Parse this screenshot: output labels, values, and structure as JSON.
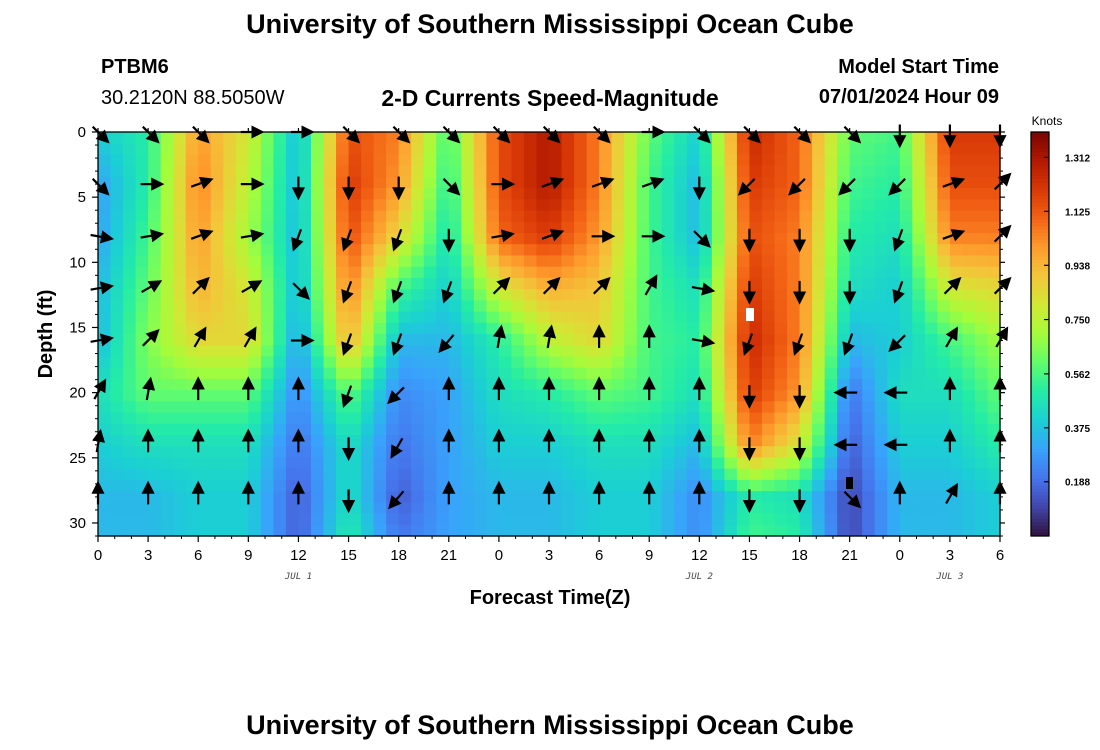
{
  "header": {
    "title": "University of Southern Mississippi Ocean Cube",
    "station_id": "PTBM6",
    "station_coords": "30.2120N  88.5050W",
    "chart_title": "2-D Currents Speed-Magnitude",
    "model_start_label": "Model Start Time",
    "model_start_value": "07/01/2024 Hour 09"
  },
  "footer": {
    "title": "University of Southern Mississippi Ocean Cube"
  },
  "colors": {
    "scale": [
      "#30123b",
      "#4145ab",
      "#4675ed",
      "#39a2fc",
      "#1bcfd4",
      "#24eca6",
      "#61fc6c",
      "#a4fc3b",
      "#d1e834",
      "#f3c63a",
      "#fe9b2d",
      "#f36315",
      "#d93806",
      "#b11901",
      "#7a0402"
    ],
    "axis": "#000000"
  },
  "chart_data": {
    "type": "heatmap",
    "subtype": "time-depth section with current direction vectors",
    "xlabel": "Forecast Time(Z)",
    "ylabel": "Depth (ft)",
    "x_range": [
      0,
      54
    ],
    "y_range": [
      0,
      31
    ],
    "y_inverted": true,
    "x_ticks": [
      0,
      3,
      6,
      9,
      12,
      15,
      18,
      21,
      24,
      27,
      30,
      33,
      36,
      39,
      42,
      45,
      48,
      51,
      54
    ],
    "x_tick_labels": [
      "0",
      "3",
      "6",
      "9",
      "12",
      "15",
      "18",
      "21",
      "0",
      "3",
      "6",
      "9",
      "12",
      "15",
      "18",
      "21",
      "0",
      "3",
      "6"
    ],
    "y_ticks": [
      0,
      5,
      10,
      15,
      20,
      25,
      30
    ],
    "y_tick_labels": [
      "0",
      "5",
      "10",
      "15",
      "20",
      "25",
      "30"
    ],
    "date_labels": [
      {
        "x": 12,
        "text": "JUL 1"
      },
      {
        "x": 36,
        "text": "JUL 2"
      },
      {
        "x": 51,
        "text": "JUL 3"
      }
    ],
    "colorbar": {
      "title": "Knots",
      "min": 0,
      "max": 1.4,
      "tick_values": [
        1.312,
        1.125,
        0.938,
        0.75,
        0.562,
        0.375,
        0.188
      ],
      "tick_labels": [
        "1.312",
        "1.125",
        "0.938",
        "0.750",
        "0.562",
        "0.375",
        "0.188"
      ]
    },
    "vector_times": [
      0,
      3,
      6,
      9,
      12,
      15,
      18,
      21,
      24,
      27,
      30,
      33,
      36,
      39,
      42,
      45,
      48,
      51,
      54
    ],
    "vector_depths": [
      0,
      4,
      8,
      12,
      16,
      20,
      24,
      28
    ],
    "vector_directions_deg": [
      [
        135,
        135,
        135,
        90,
        90,
        135,
        135,
        135,
        135,
        135,
        135,
        90,
        135,
        135,
        135,
        135,
        180,
        180,
        180
      ],
      [
        135,
        90,
        70,
        90,
        180,
        180,
        180,
        135,
        90,
        70,
        70,
        70,
        180,
        225,
        225,
        225,
        225,
        70,
        45
      ],
      [
        100,
        80,
        70,
        80,
        200,
        200,
        200,
        180,
        80,
        70,
        90,
        90,
        135,
        180,
        180,
        180,
        200,
        70,
        45
      ],
      [
        80,
        60,
        45,
        60,
        135,
        200,
        200,
        200,
        45,
        45,
        45,
        30,
        100,
        180,
        180,
        180,
        200,
        45,
        45
      ],
      [
        80,
        45,
        30,
        30,
        90,
        200,
        200,
        220,
        10,
        10,
        0,
        0,
        100,
        200,
        200,
        200,
        225,
        30,
        30
      ],
      [
        30,
        10,
        0,
        0,
        0,
        200,
        225,
        0,
        0,
        0,
        0,
        0,
        0,
        180,
        180,
        270,
        270,
        0,
        0
      ],
      [
        10,
        0,
        0,
        0,
        0,
        180,
        210,
        0,
        0,
        0,
        0,
        0,
        0,
        180,
        180,
        270,
        270,
        0,
        0
      ],
      [
        0,
        0,
        0,
        0,
        0,
        180,
        220,
        0,
        0,
        0,
        0,
        0,
        0,
        180,
        180,
        135,
        0,
        30,
        0
      ]
    ],
    "speed_field_knots": {
      "depths": [
        0,
        4,
        8,
        12,
        16,
        20,
        24,
        28,
        31
      ],
      "times": [
        0,
        3,
        6,
        9,
        12,
        15,
        18,
        21,
        24,
        27,
        30,
        33,
        36,
        39,
        42,
        45,
        48,
        51,
        54
      ],
      "values": [
        [
          0.4,
          0.5,
          1.0,
          0.8,
          0.35,
          1.15,
          1.05,
          0.55,
          1.15,
          1.3,
          1.05,
          0.6,
          0.4,
          1.25,
          1.1,
          0.6,
          0.55,
          1.2,
          1.2
        ],
        [
          0.3,
          0.5,
          1.05,
          0.75,
          0.35,
          1.2,
          1.0,
          0.5,
          1.15,
          1.3,
          1.05,
          0.55,
          0.35,
          1.2,
          1.1,
          0.55,
          0.5,
          1.15,
          1.15
        ],
        [
          0.3,
          0.55,
          1.0,
          0.7,
          0.35,
          1.15,
          0.85,
          0.45,
          1.1,
          1.2,
          1.0,
          0.55,
          0.35,
          1.15,
          1.05,
          0.5,
          0.45,
          1.05,
          1.05
        ],
        [
          0.35,
          0.6,
          0.95,
          0.8,
          0.35,
          1.05,
          0.55,
          0.4,
          0.8,
          0.95,
          0.9,
          0.55,
          0.45,
          1.2,
          1.05,
          0.45,
          0.4,
          0.8,
          0.85
        ],
        [
          0.35,
          0.65,
          0.85,
          0.85,
          0.3,
          0.95,
          0.35,
          0.35,
          0.5,
          0.75,
          0.85,
          0.55,
          0.5,
          1.25,
          1.05,
          0.35,
          0.4,
          0.55,
          0.7
        ],
        [
          0.45,
          0.6,
          0.6,
          0.6,
          0.25,
          0.6,
          0.25,
          0.3,
          0.45,
          0.5,
          0.6,
          0.55,
          0.45,
          1.2,
          1.0,
          0.2,
          0.45,
          0.45,
          0.6
        ],
        [
          0.4,
          0.45,
          0.45,
          0.45,
          0.2,
          0.45,
          0.2,
          0.3,
          0.4,
          0.4,
          0.45,
          0.45,
          0.35,
          1.05,
          0.8,
          0.15,
          0.4,
          0.4,
          0.5
        ],
        [
          0.35,
          0.35,
          0.4,
          0.4,
          0.15,
          0.45,
          0.15,
          0.3,
          0.35,
          0.35,
          0.4,
          0.4,
          0.25,
          0.5,
          0.45,
          0.1,
          0.35,
          0.35,
          0.4
        ],
        [
          0.35,
          0.35,
          0.4,
          0.4,
          0.15,
          0.5,
          0.2,
          0.3,
          0.35,
          0.35,
          0.4,
          0.4,
          0.25,
          0.55,
          0.5,
          0.1,
          0.35,
          0.35,
          0.4
        ]
      ]
    }
  }
}
